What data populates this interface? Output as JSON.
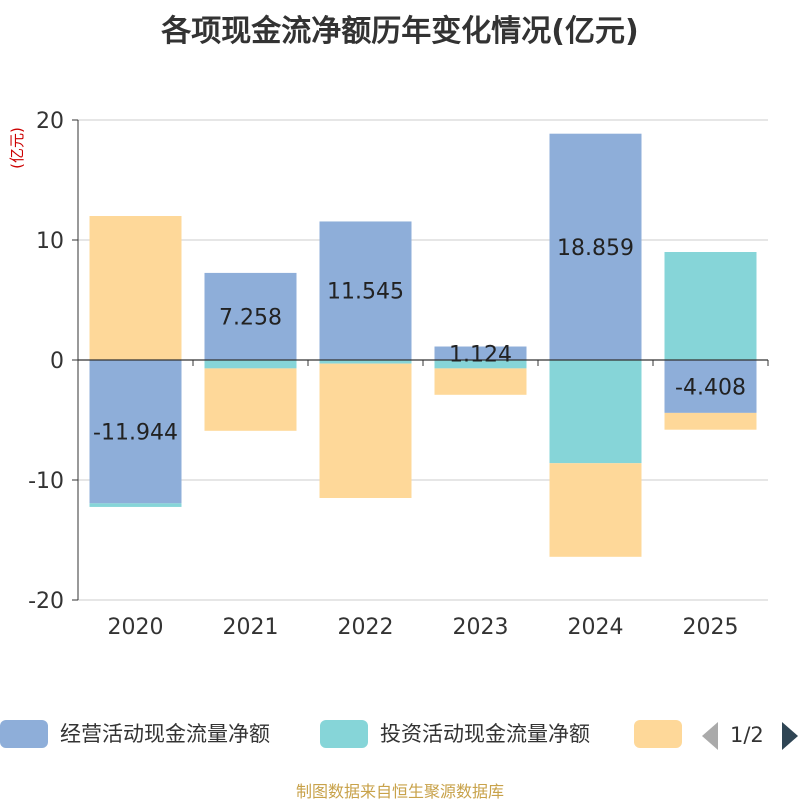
{
  "chart_data": {
    "type": "bar",
    "stacked": true,
    "title": "各项现金流净额历年变化情况(亿元)",
    "ylabel": "(亿元)",
    "xlabel": "",
    "ylim": [
      -20,
      20
    ],
    "yticks": [
      20,
      10,
      0,
      -10,
      -20
    ],
    "grid": true,
    "categories": [
      "2020",
      "2021",
      "2022",
      "2023",
      "2024",
      "2025"
    ],
    "series": [
      {
        "name": "经营活动现金流量净额",
        "color": "#8eaed9",
        "values": [
          -11.944,
          7.258,
          11.545,
          1.124,
          18.859,
          -4.408
        ],
        "labels": [
          "-11.944",
          "7.258",
          "11.545",
          "1.124",
          "18.859",
          "-4.408"
        ]
      },
      {
        "name": "投资活动现金流量净额",
        "color": "#86d5d8",
        "values": [
          -0.3,
          -0.7,
          -0.3,
          -0.7,
          -8.6,
          9.0
        ]
      },
      {
        "name": "",
        "color": "#fed899",
        "values": [
          12.0,
          -5.2,
          -11.2,
          -2.2,
          -7.8,
          -1.4
        ]
      }
    ],
    "legend_position": "bottom"
  },
  "legend": {
    "pager": "1/2"
  },
  "source": "制图数据来自恒生聚源数据库"
}
